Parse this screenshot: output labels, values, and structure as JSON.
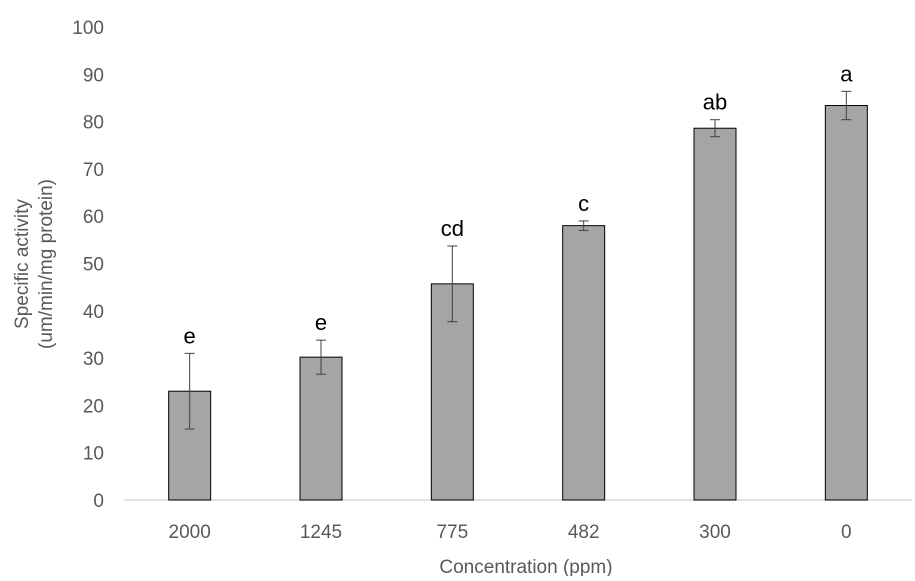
{
  "chart_data": {
    "type": "bar",
    "title": "",
    "xlabel": "Concentration (ppm)",
    "ylabel_lines": [
      "Specific activity",
      "(um/min/mg protein)"
    ],
    "categories": [
      "2000",
      "1245",
      "775",
      "482",
      "300",
      "0"
    ],
    "series": [
      {
        "values": [
          23,
          30.2,
          45.7,
          58,
          78.6,
          83.4
        ],
        "error": [
          8,
          3.6,
          8,
          1,
          1.8,
          3
        ],
        "labels": [
          "e",
          "e",
          "cd",
          "c",
          "ab",
          "a"
        ]
      }
    ],
    "ylim": [
      0,
      100
    ],
    "yticks": [
      0,
      10,
      20,
      30,
      40,
      50,
      60,
      70,
      80,
      90,
      100
    ],
    "grid": false,
    "legend": "none",
    "colors": {
      "bar_fill": "#a5a5a5",
      "bar_stroke": "#000000",
      "axis": "#d9d9d9",
      "tick_text": "#595959",
      "error_bar": "#404040"
    }
  }
}
